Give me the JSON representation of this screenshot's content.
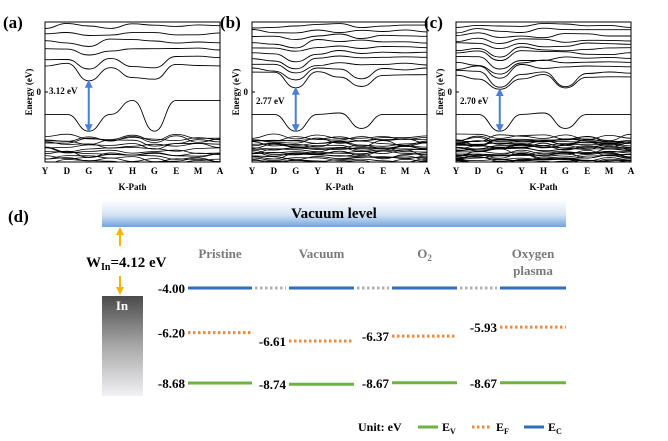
{
  "chart_data": [
    {
      "type": "line",
      "panel_label": "(a)",
      "ylabel": "Energy (eV)",
      "xlabel": "K-Path",
      "x_ticks": [
        "Y",
        "D",
        "G",
        "Y",
        "H",
        "G",
        "E",
        "M",
        "A"
      ],
      "y_ticks": [
        "0"
      ],
      "band_gap_label": "3.12 eV",
      "band_gap_eV": 3.12,
      "gap_at": "G"
    },
    {
      "type": "line",
      "panel_label": "(b)",
      "ylabel": "Energy (eV)",
      "xlabel": "K-Path",
      "x_ticks": [
        "Y",
        "D",
        "G",
        "Y",
        "H",
        "G",
        "E",
        "M",
        "A"
      ],
      "y_ticks": [
        "0"
      ],
      "band_gap_label": "2.77 eV",
      "band_gap_eV": 2.77,
      "gap_at": "G"
    },
    {
      "type": "line",
      "panel_label": "(c)",
      "ylabel": "Energy (eV)",
      "xlabel": "K-Path",
      "x_ticks": [
        "Y",
        "D",
        "G",
        "Y",
        "H",
        "G",
        "E",
        "M",
        "A"
      ],
      "y_ticks": [
        "0"
      ],
      "band_gap_label": "2.70 eV",
      "band_gap_eV": 2.7,
      "gap_at": "G"
    },
    {
      "type": "diagram",
      "panel_label": "(d)",
      "vacuum_label": "Vacuum level",
      "work_function_label": "W",
      "work_function_sub": "In",
      "work_function_value": "=4.12 eV",
      "metal_label": "In",
      "unit_label": "Unit: eV",
      "legend": [
        {
          "name": "E",
          "sub": "V",
          "color": "#6db33f",
          "style": "solid"
        },
        {
          "name": "E",
          "sub": "F",
          "color": "#f08a3e",
          "style": "dotted"
        },
        {
          "name": "E",
          "sub": "C",
          "color": "#2e6fb7",
          "style": "solid"
        }
      ],
      "conditions": [
        {
          "name": "Pristine",
          "name_sub": "",
          "EC": -4.0,
          "EF": -6.2,
          "EV": -8.68,
          "EC_label": "-4.00",
          "EF_label": "-6.20",
          "EV_label": "-8.68"
        },
        {
          "name": "Vacuum",
          "name_sub": "",
          "EC": -4.0,
          "EF": -6.61,
          "EV": -8.74,
          "EC_label": "",
          "EF_label": "-6.61",
          "EV_label": "-8.74"
        },
        {
          "name": "O",
          "name_sub": "2",
          "EC": -4.0,
          "EF": -6.37,
          "EV": -8.67,
          "EC_label": "",
          "EF_label": "-6.37",
          "EV_label": "-8.67"
        },
        {
          "name": "Oxygen plasma",
          "name_line1": "Oxygen",
          "name_line2": "plasma",
          "name_sub": "",
          "EC": -4.0,
          "EF": -5.93,
          "EV": -8.67,
          "EC_label": "",
          "EF_label": "-5.93",
          "EV_label": "-8.67"
        }
      ]
    }
  ],
  "colors": {
    "ec": "#2e6fb7",
    "ef": "#f08a3e",
    "ev": "#6db33f",
    "arrow": "#4a7fd6",
    "wf_arrow": "#f5b400",
    "gray": "#b0b0b0",
    "label_gray": "#7a7a7a"
  }
}
